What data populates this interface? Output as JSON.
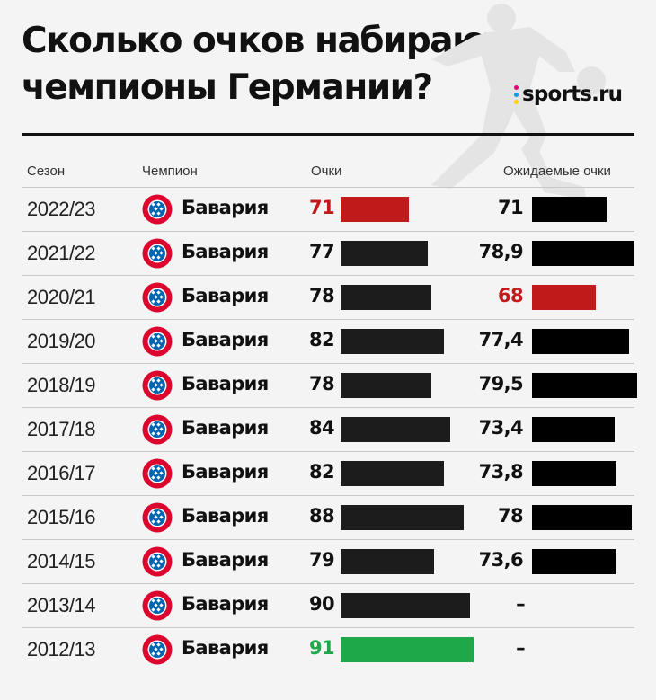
{
  "title": {
    "line1": "Сколько очков набирают",
    "line2": "чемпионы Германии?"
  },
  "brand": {
    "name": "sports.ru",
    "dot_colors": [
      "#e6007e",
      "#00a0e3",
      "#ffd200"
    ]
  },
  "headers": {
    "season": "Сезон",
    "champion": "Чемпион",
    "points": "Очки",
    "expected": "Ожидаемые очки"
  },
  "colors": {
    "bar": "#1c1c1c",
    "expected_bar": "#000000",
    "min_highlight": "#c11a1a",
    "max_highlight": "#1fa84a",
    "text": "#111111"
  },
  "chart_data": {
    "type": "bar",
    "title": "Сколько очков набирают чемпионы Германии?",
    "categories": [
      "2022/23",
      "2021/22",
      "2020/21",
      "2019/20",
      "2018/19",
      "2017/18",
      "2016/17",
      "2015/16",
      "2014/15",
      "2013/14",
      "2012/13"
    ],
    "champions": [
      "Бавария",
      "Бавария",
      "Бавария",
      "Бавария",
      "Бавария",
      "Бавария",
      "Бавария",
      "Бавария",
      "Бавария",
      "Бавария",
      "Бавария"
    ],
    "series": [
      {
        "name": "Очки",
        "values": [
          71,
          77,
          78,
          82,
          78,
          84,
          82,
          88,
          79,
          90,
          91
        ],
        "labels": [
          "71",
          "77",
          "78",
          "82",
          "78",
          "84",
          "82",
          "88",
          "79",
          "90",
          "91"
        ],
        "highlight": [
          "min",
          null,
          null,
          null,
          null,
          null,
          null,
          null,
          null,
          null,
          "max"
        ]
      },
      {
        "name": "Ожидаемые очки",
        "values": [
          71,
          78.9,
          68,
          77.4,
          79.5,
          73.4,
          73.8,
          78,
          73.6,
          null,
          null
        ],
        "labels": [
          "71",
          "78,9",
          "68",
          "77,4",
          "79,5",
          "73,4",
          "73,8",
          "78",
          "73,6",
          "–",
          "–"
        ],
        "highlight": [
          null,
          null,
          "min",
          null,
          null,
          null,
          null,
          null,
          null,
          null,
          null
        ]
      }
    ],
    "grid": false,
    "legend": "none"
  }
}
